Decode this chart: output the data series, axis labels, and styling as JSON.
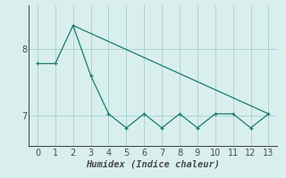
{
  "xlabel": "Humidex (Indice chaleur)",
  "bg_color": "#d8efee",
  "line_color": "#1a7a6e",
  "grid_color": "#aed4d0",
  "axis_color": "#4a4a4a",
  "series1_x": [
    0,
    1,
    2,
    3,
    4,
    5,
    6,
    7,
    8,
    9,
    10,
    11,
    12,
    13
  ],
  "series1_y": [
    7.78,
    7.78,
    8.35,
    7.6,
    7.03,
    6.82,
    7.03,
    6.82,
    7.03,
    6.82,
    7.03,
    7.03,
    6.82,
    7.03
  ],
  "series2_x": [
    2,
    13
  ],
  "series2_y": [
    8.35,
    7.03
  ],
  "ylim": [
    6.55,
    8.65
  ],
  "xlim": [
    -0.5,
    13.5
  ],
  "yticks": [
    7,
    8
  ],
  "xticks": [
    0,
    1,
    2,
    3,
    4,
    5,
    6,
    7,
    8,
    9,
    10,
    11,
    12,
    13
  ],
  "xlabel_fontsize": 7.5,
  "tick_fontsize": 7
}
